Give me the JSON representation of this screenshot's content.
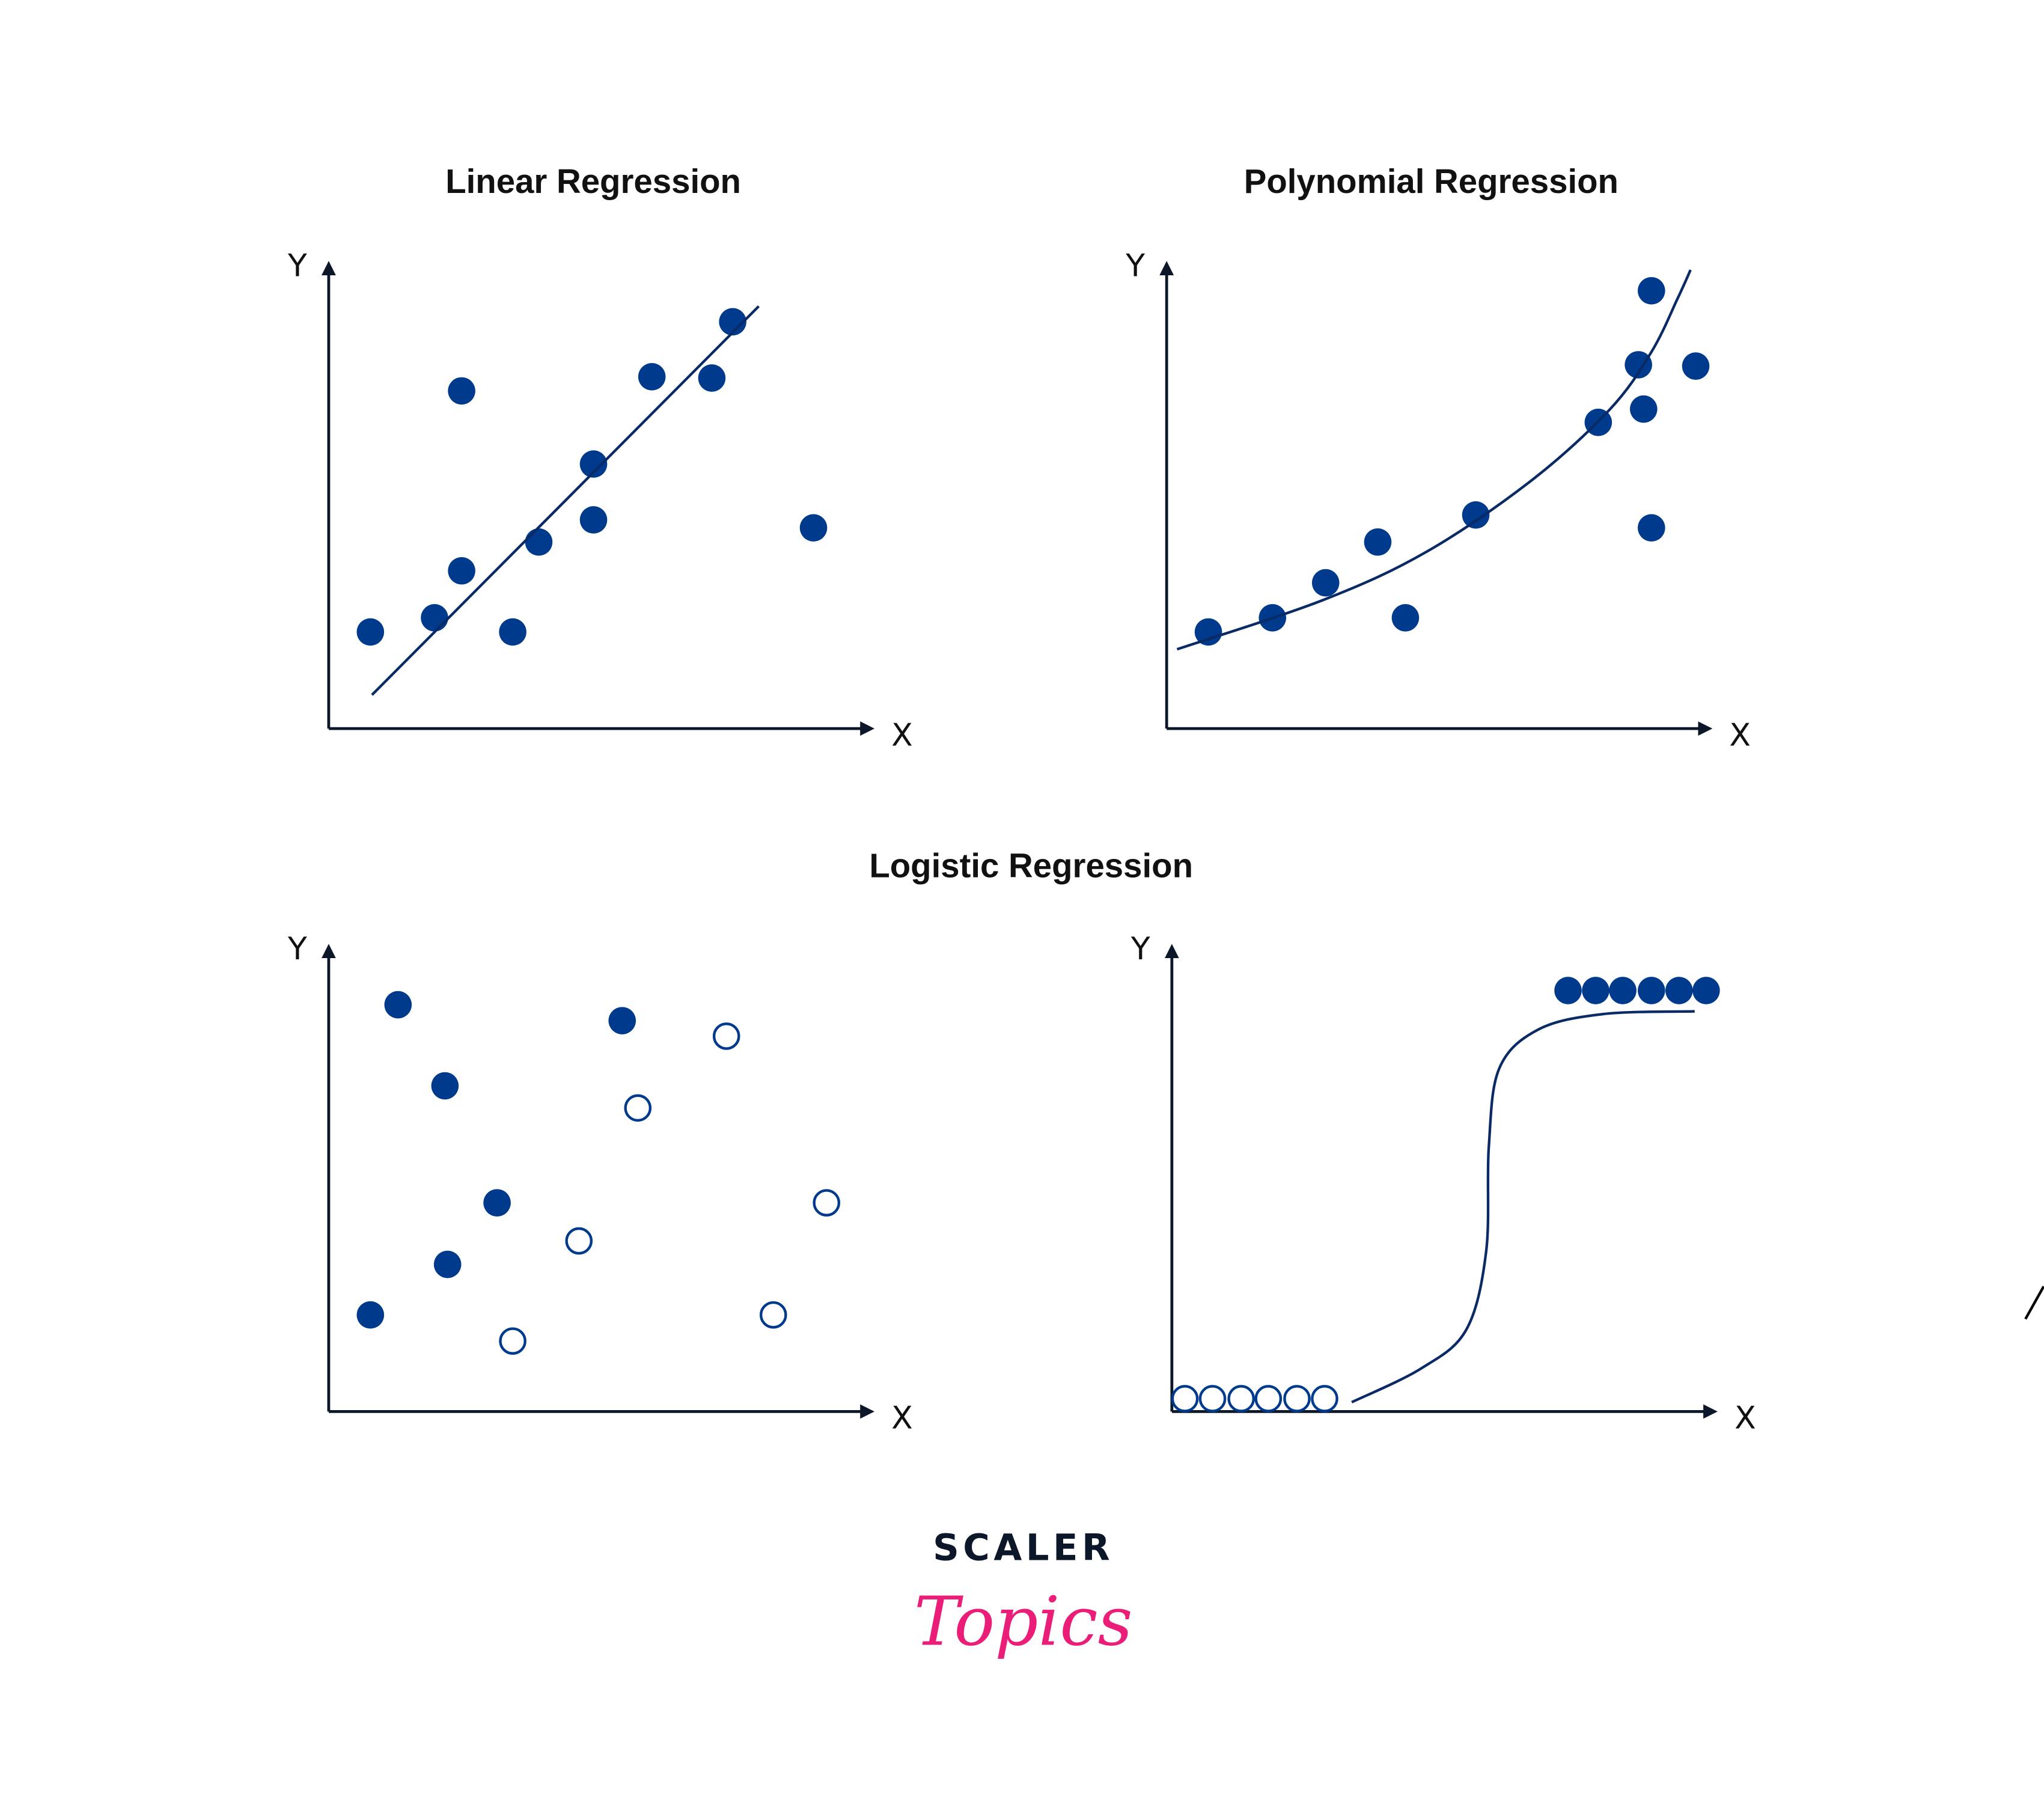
{
  "colors": {
    "point": "#003a8c",
    "line": "#0a2a66",
    "axis": "#0c1829",
    "logo_dark": "#0c1829",
    "logo_pink": "#ea1e78"
  },
  "logo": {
    "line1": "SCALER",
    "line2": "Topics"
  },
  "chart_data": [
    {
      "type": "scatter",
      "title": "Linear Regression",
      "xlabel": "X",
      "ylabel": "Y",
      "xlim": [
        0,
        10
      ],
      "ylim": [
        0,
        10
      ],
      "series": [
        {
          "name": "points",
          "style": "filled",
          "points": [
            [
              0.8,
              2.18
            ],
            [
              2.03,
              2.5
            ],
            [
              2.55,
              3.56
            ],
            [
              2.55,
              7.62
            ],
            [
              3.53,
              2.18
            ],
            [
              4.03,
              4.21
            ],
            [
              5.08,
              5.97
            ],
            [
              5.08,
              4.71
            ],
            [
              6.2,
              7.94
            ],
            [
              7.35,
              7.91
            ],
            [
              7.75,
              9.18
            ],
            [
              9.3,
              4.53
            ]
          ]
        },
        {
          "name": "fit",
          "style": "line",
          "points": [
            [
              0.83,
              0.76
            ],
            [
              8.25,
              9.53
            ]
          ]
        }
      ]
    },
    {
      "type": "scatter",
      "title": "Polynomial Regression",
      "xlabel": "X",
      "ylabel": "Y",
      "xlim": [
        0,
        10
      ],
      "ylim": [
        0,
        10
      ],
      "series": [
        {
          "name": "points",
          "style": "filled",
          "points": [
            [
              0.8,
              2.18
            ],
            [
              2.03,
              2.5
            ],
            [
              3.05,
              3.29
            ],
            [
              4.05,
              4.21
            ],
            [
              4.58,
              2.5
            ],
            [
              5.93,
              4.82
            ],
            [
              8.28,
              6.91
            ],
            [
              9.05,
              8.21
            ],
            [
              9.15,
              7.21
            ],
            [
              9.3,
              9.88
            ],
            [
              9.3,
              4.53
            ],
            [
              10.15,
              8.18
            ]
          ]
        },
        {
          "name": "fit",
          "style": "curve",
          "points": [
            [
              0.2,
              1.79
            ],
            [
              3,
              2.9
            ],
            [
              5,
              4.0
            ],
            [
              7,
              5.6
            ],
            [
              8.5,
              7.2
            ],
            [
              9.3,
              8.5
            ],
            [
              9.8,
              9.7
            ],
            [
              10.05,
              10.35
            ]
          ]
        }
      ]
    },
    {
      "type": "scatter",
      "title": "Logistic Regression",
      "xlabel": "X",
      "ylabel": "Y",
      "xlim": [
        0,
        10
      ],
      "ylim": [
        0,
        10
      ],
      "series": [
        {
          "name": "class-1",
          "style": "filled",
          "points": [
            [
              1.33,
              9.18
            ],
            [
              2.23,
              7.35
            ],
            [
              3.23,
              4.71
            ],
            [
              2.28,
              3.32
            ],
            [
              0.8,
              2.18
            ],
            [
              5.63,
              8.82
            ]
          ]
        },
        {
          "name": "class-0",
          "style": "hollow",
          "points": [
            [
              7.63,
              8.47
            ],
            [
              5.93,
              6.85
            ],
            [
              4.8,
              3.85
            ],
            [
              3.53,
              1.59
            ],
            [
              8.53,
              2.18
            ],
            [
              9.55,
              4.71
            ]
          ]
        }
      ]
    },
    {
      "type": "scatter",
      "title": "",
      "xlabel": "X",
      "ylabel": "Y",
      "xlim": [
        0,
        10
      ],
      "ylim": [
        0,
        10
      ],
      "series": [
        {
          "name": "class-0",
          "style": "hollow",
          "points": [
            [
              0.25,
              0.29
            ],
            [
              0.78,
              0.29
            ],
            [
              1.33,
              0.29
            ],
            [
              1.85,
              0.29
            ],
            [
              2.4,
              0.29
            ],
            [
              2.93,
              0.29
            ]
          ]
        },
        {
          "name": "class-1",
          "style": "filled",
          "points": [
            [
              7.6,
              9.5
            ],
            [
              8.13,
              9.5
            ],
            [
              8.65,
              9.5
            ],
            [
              9.2,
              9.5
            ],
            [
              9.73,
              9.5
            ],
            [
              10.25,
              9.5
            ]
          ]
        },
        {
          "name": "sigmoid",
          "style": "curve",
          "points": [
            [
              3.45,
              0.21
            ],
            [
              4.78,
              0.97
            ],
            [
              5.65,
              1.85
            ],
            [
              6.03,
              3.62
            ],
            [
              6.08,
              5.97
            ],
            [
              6.28,
              7.74
            ],
            [
              7.03,
              8.62
            ],
            [
              8.28,
              8.97
            ],
            [
              10.03,
              9.03
            ]
          ]
        }
      ]
    }
  ]
}
